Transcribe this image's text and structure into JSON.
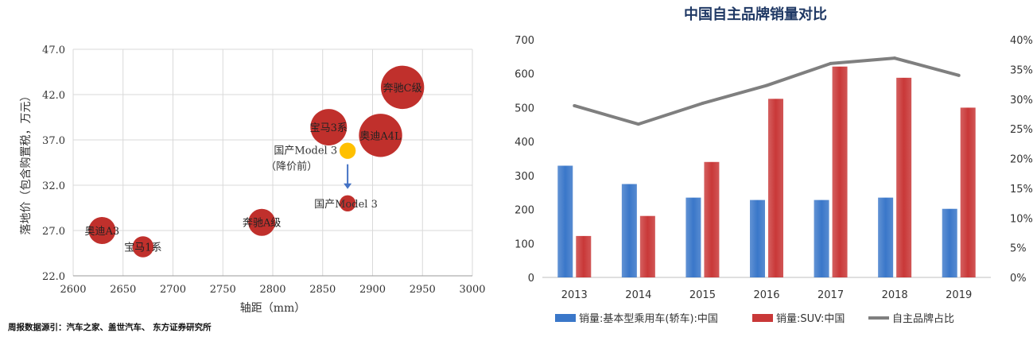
{
  "source_note": "周报数据源引：汽车之家、盖世汽车、 东方证券研究所",
  "chart_data": [
    {
      "type": "scatter",
      "title": "",
      "xlabel": "轴距（mm）",
      "ylabel": "落地价（包含购置税，万元）",
      "xlim": [
        2600,
        3000
      ],
      "ylim": [
        22.0,
        47.0
      ],
      "x_ticks": [
        "2600",
        "2650",
        "2700",
        "2750",
        "2800",
        "2850",
        "2900",
        "2950",
        "3000"
      ],
      "y_ticks": [
        "22.0",
        "27.0",
        "32.0",
        "37.0",
        "42.0",
        "47.0"
      ],
      "points": [
        {
          "label": "奥迪A3",
          "x": 2629,
          "y": 27.0,
          "size": 1.0,
          "color": "#c0302c"
        },
        {
          "label": "宝马1系",
          "x": 2670,
          "y": 25.2,
          "size": 0.78,
          "color": "#c0302c"
        },
        {
          "label": "奔驰A级",
          "x": 2789,
          "y": 27.9,
          "size": 1.0,
          "color": "#c0302c"
        },
        {
          "label": "宝马3系",
          "x": 2856,
          "y": 38.4,
          "size": 1.35,
          "color": "#c0302c"
        },
        {
          "label": "奥迪A4L",
          "x": 2908,
          "y": 37.5,
          "size": 1.6,
          "color": "#c0302c"
        },
        {
          "label": "奔驰C级",
          "x": 2930,
          "y": 42.8,
          "size": 1.6,
          "color": "#c0302c"
        },
        {
          "label": "国产Model 3",
          "x": 2875,
          "y": 30.0,
          "size": 0.6,
          "color": "#c0302c"
        },
        {
          "label": "国产Model 3",
          "sublabel": "（降价前）",
          "x": 2875,
          "y": 35.8,
          "size": 0.6,
          "color": "#ffc000"
        }
      ],
      "arrow_color": "#4472c4"
    },
    {
      "type": "bar",
      "title": "中国自主品牌销量对比",
      "categories": [
        "2013",
        "2014",
        "2015",
        "2016",
        "2017",
        "2018",
        "2019"
      ],
      "ylim": [
        0,
        700
      ],
      "y_ticks": [
        "0",
        "100",
        "200",
        "300",
        "400",
        "500",
        "600",
        "700"
      ],
      "y2lim": [
        0,
        40
      ],
      "y2_ticks": [
        "0%",
        "5%",
        "10%",
        "15%",
        "20%",
        "25%",
        "30%",
        "35%",
        "40%"
      ],
      "series": [
        {
          "name": "销量:基本型乘用车(轿车):中国",
          "kind": "bar",
          "color": "#3a77c9",
          "values": [
            329,
            275,
            235,
            228,
            228,
            235,
            202
          ]
        },
        {
          "name": "销量:SUV:中国",
          "kind": "bar",
          "color": "#c93838",
          "values": [
            122,
            181,
            340,
            526,
            621,
            588,
            500
          ]
        },
        {
          "name": "自主品牌占比",
          "kind": "line",
          "axis": "right",
          "color": "#7f7f7f",
          "values": [
            28.9,
            25.8,
            29.3,
            32.3,
            36.0,
            36.9,
            34.0
          ]
        }
      ],
      "legend_position": "bottom"
    }
  ]
}
